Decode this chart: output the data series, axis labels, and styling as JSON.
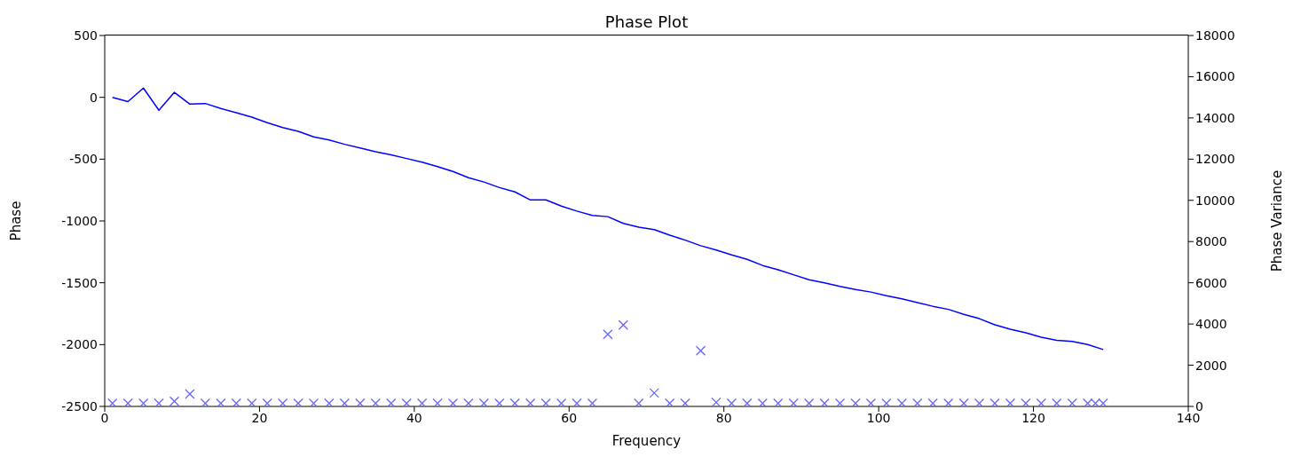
{
  "chart_data": {
    "type": "line",
    "title": "Phase Plot",
    "xlabel": "Frequency",
    "ylabel": "Phase",
    "y2label": "Phase Variance",
    "xlim": [
      0,
      140
    ],
    "xticks": [
      0,
      20,
      40,
      60,
      80,
      100,
      120,
      140
    ],
    "ylim": [
      -2500,
      500
    ],
    "yticks": [
      -2500,
      -2000,
      -1500,
      -1000,
      -500,
      0,
      500
    ],
    "y2lim": [
      0,
      18000
    ],
    "y2ticks": [
      0,
      2000,
      4000,
      6000,
      8000,
      10000,
      12000,
      14000,
      16000,
      18000
    ],
    "series": [
      {
        "color": "#0000ff",
        "marker": "none",
        "line_style": "solid",
        "x": [
          1,
          3,
          5,
          7,
          9,
          11,
          13,
          15,
          17,
          19,
          21,
          23,
          25,
          27,
          29,
          31,
          33,
          35,
          37,
          39,
          41,
          43,
          45,
          47,
          49,
          51,
          53,
          55,
          57,
          59,
          61,
          63,
          65,
          67,
          69,
          71,
          73,
          75,
          77,
          79,
          81,
          83,
          85,
          87,
          89,
          91,
          93,
          95,
          97,
          99,
          101,
          103,
          105,
          107,
          109,
          111,
          113,
          115,
          117,
          119,
          121,
          123,
          125,
          127,
          129
        ],
        "values": [
          0,
          -35,
          75,
          -105,
          40,
          -55,
          -50,
          -90,
          -125,
          -160,
          -205,
          -245,
          -275,
          -320,
          -345,
          -380,
          -410,
          -440,
          -465,
          -495,
          -525,
          -560,
          -600,
          -650,
          -685,
          -730,
          -765,
          -830,
          -830,
          -880,
          -920,
          -955,
          -965,
          -1020,
          -1050,
          -1070,
          -1115,
          -1155,
          -1200,
          -1235,
          -1275,
          -1310,
          -1360,
          -1395,
          -1435,
          -1475,
          -1500,
          -1530,
          -1555,
          -1575,
          -1605,
          -1630,
          -1660,
          -1690,
          -1715,
          -1755,
          -1790,
          -1840,
          -1875,
          -1905,
          -1940,
          -1965,
          -1975,
          -2000,
          -2040
        ]
      },
      {
        "type": "scatter",
        "axis": "y2",
        "color": "#6666ff",
        "marker": "cross",
        "x": [
          1,
          3,
          5,
          7,
          9,
          11,
          13,
          15,
          17,
          19,
          21,
          23,
          25,
          27,
          29,
          31,
          33,
          35,
          37,
          39,
          41,
          43,
          45,
          47,
          49,
          51,
          53,
          55,
          57,
          59,
          61,
          63,
          65,
          67,
          69,
          71,
          73,
          75,
          77,
          79,
          81,
          83,
          85,
          87,
          89,
          91,
          93,
          95,
          97,
          99,
          101,
          103,
          105,
          107,
          109,
          111,
          113,
          115,
          117,
          119,
          121,
          123,
          125,
          127,
          128,
          129
        ],
        "values": [
          150,
          150,
          150,
          150,
          250,
          600,
          150,
          150,
          150,
          150,
          150,
          150,
          150,
          150,
          150,
          150,
          150,
          150,
          150,
          150,
          150,
          150,
          150,
          150,
          150,
          150,
          150,
          150,
          150,
          150,
          150,
          150,
          3500,
          3950,
          150,
          650,
          150,
          150,
          2700,
          200,
          150,
          150,
          150,
          150,
          150,
          150,
          150,
          150,
          150,
          150,
          150,
          150,
          150,
          150,
          150,
          150,
          150,
          150,
          150,
          150,
          150,
          150,
          150,
          150,
          150,
          150
        ]
      }
    ]
  }
}
